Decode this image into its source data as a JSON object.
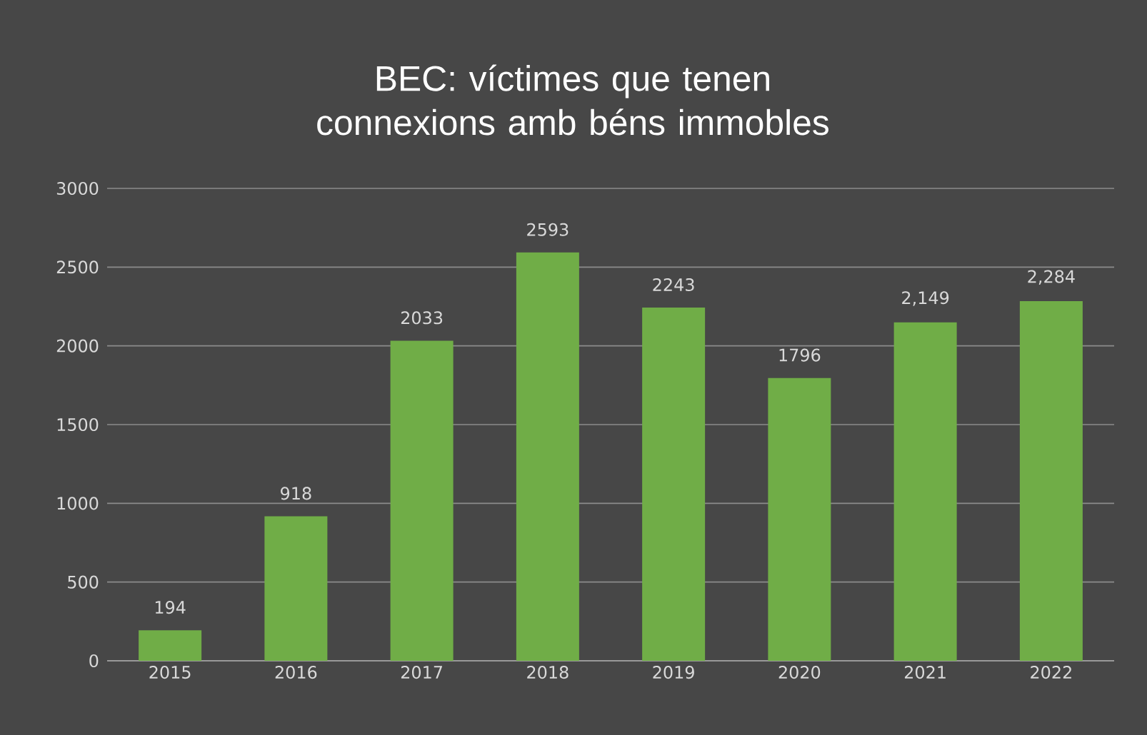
{
  "chart_data": {
    "type": "bar",
    "title": "BEC: víctimes que tenen connexions amb béns immobles",
    "categories": [
      "2015",
      "2016",
      "2017",
      "2018",
      "2019",
      "2020",
      "2021",
      "2022"
    ],
    "values": [
      194,
      918,
      2033,
      2593,
      2243,
      1796,
      2149,
      2284
    ],
    "value_labels": [
      "194",
      "918",
      "2033",
      "2593",
      "2243",
      "1796",
      "2,149",
      "2,284"
    ],
    "color": "#70ad47",
    "ylim": [
      0,
      3000
    ],
    "yticks": [
      0,
      500,
      1000,
      1500,
      2000,
      2500,
      3000
    ],
    "grid": "y"
  }
}
